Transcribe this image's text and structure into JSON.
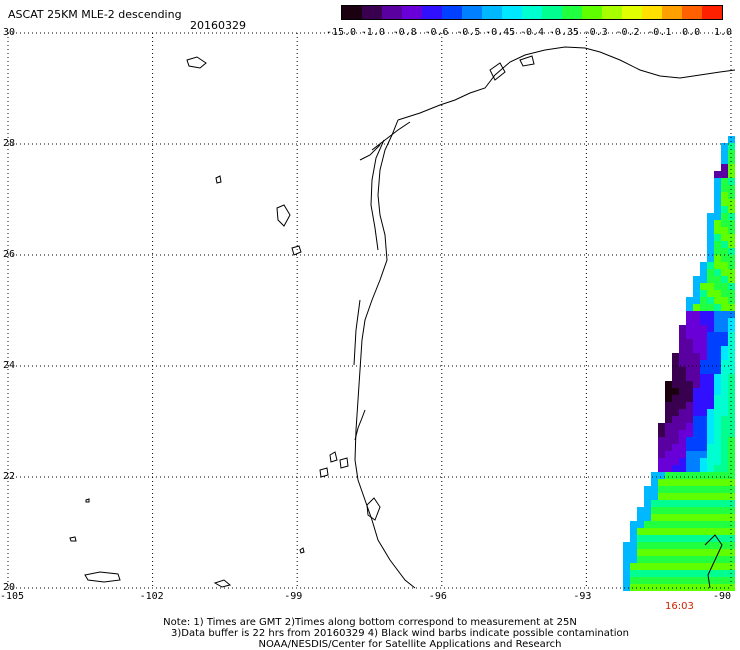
{
  "header": {
    "title": "ASCAT 25KM MLE-2 descending",
    "date": "20160329"
  },
  "colorbar": {
    "labels": [
      "-15.0",
      "-1.0",
      "-0.8",
      "-0.6",
      "-0.5",
      "-0.45",
      "-0.4",
      "-0.35",
      "-0.3",
      "-0.2",
      "-0.1",
      "0.0",
      "1.0"
    ],
    "colors": [
      "#1a0010",
      "#3a0050",
      "#5a00a0",
      "#6a00d8",
      "#3010ff",
      "#0040ff",
      "#0080ff",
      "#00b8ff",
      "#00e8ff",
      "#00ffd0",
      "#00ff90",
      "#20ff40",
      "#60ff00",
      "#a8ff00",
      "#e0ff00",
      "#ffe000",
      "#ffa000",
      "#ff6000",
      "#ff2000"
    ]
  },
  "map": {
    "lat_labels": [
      "30",
      "28",
      "26",
      "24",
      "22",
      "20"
    ],
    "lon_labels": [
      "-105",
      "-102",
      "-99",
      "-96",
      "-93",
      "-90"
    ],
    "lat_range": [
      20,
      30
    ],
    "lon_range": [
      -105,
      -90
    ],
    "grid": true,
    "swath_time": "16:03"
  },
  "notes": {
    "line1": "Note: 1) Times are GMT 2)Times along bottom correspond to measurement at 25N",
    "line2": "3)Data buffer is 22 hrs from 20160329 4) Black wind barbs indicate possible contamination",
    "line3": "NOAA/NESDIS/Center for Satellite Applications and Research"
  }
}
